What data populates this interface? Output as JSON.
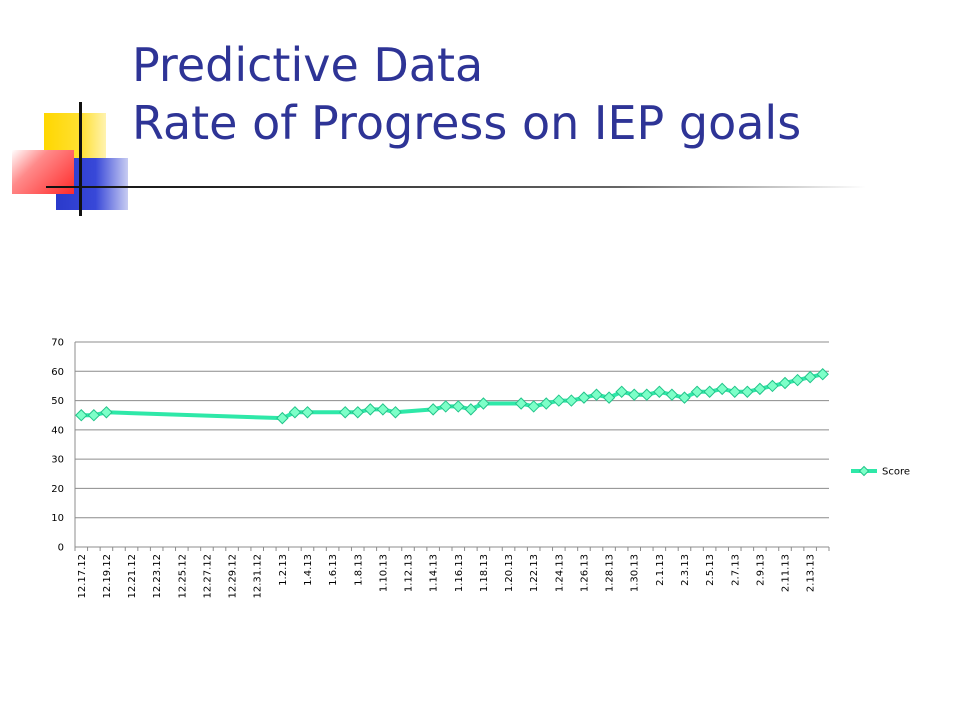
{
  "slide": {
    "title_line1": "Predictive Data",
    "title_line2": "Rate of Progress on IEP goals",
    "colors": {
      "title": "#2e3496",
      "series": "#2ee8a8",
      "marker": "#7dffc8"
    }
  },
  "chart_data": {
    "type": "line",
    "title": "",
    "xlabel": "",
    "ylabel": "",
    "ylim": [
      0,
      70
    ],
    "yticks": [
      0,
      10,
      20,
      30,
      40,
      50,
      60,
      70
    ],
    "grid": true,
    "legend_position": "right",
    "categories": [
      "12.17.12",
      "12.18.12",
      "12.19.12",
      "12.20.12",
      "12.21.12",
      "12.22.12",
      "12.23.12",
      "12.24.12",
      "12.25.12",
      "12.26.12",
      "12.27.12",
      "12.28.12",
      "12.29.12",
      "12.30.12",
      "12.31.12",
      "1.1.13",
      "1.2.13",
      "1.3.13",
      "1.4.13",
      "1.5.13",
      "1.6.13",
      "1.7.13",
      "1.8.13",
      "1.9.13",
      "1.10.13",
      "1.11.13",
      "1.12.13",
      "1.13.13",
      "1.14.13",
      "1.15.13",
      "1.16.13",
      "1.17.13",
      "1.18.13",
      "1.19.13",
      "1.20.13",
      "1.21.13",
      "1.22.13",
      "1.23.13",
      "1.24.13",
      "1.25.13",
      "1.26.13",
      "1.27.13",
      "1.28.13",
      "1.29.13",
      "1.30.13",
      "1.31.13",
      "2.1.13",
      "2.2.13",
      "2.3.13",
      "2.4.13",
      "2.5.13",
      "2.6.13",
      "2.7.13",
      "2.8.13",
      "2.9.13",
      "2.10.13",
      "2.11.13",
      "2.12.13",
      "2.13.13",
      "2.14.13"
    ],
    "tick_labels": [
      "12.17.12",
      "12.19.12",
      "12.21.12",
      "12.23.12",
      "12.25.12",
      "12.27.12",
      "12.29.12",
      "12.31.12",
      "1.2.13",
      "1.4.13",
      "1.6.13",
      "1.8.13",
      "1.10.13",
      "1.12.13",
      "1.14.13",
      "1.16.13",
      "1.18.13",
      "1.20.13",
      "1.22.13",
      "1.24.13",
      "1.26.13",
      "1.28.13",
      "1.30.13",
      "2.1.13",
      "2.3.13",
      "2.5.13",
      "2.7.13",
      "2.9.13",
      "2.11.13",
      "2.13.13"
    ],
    "series": [
      {
        "name": "Score",
        "color": "#2ee8a8",
        "points": [
          [
            "12.17.12",
            45
          ],
          [
            "12.18.12",
            45
          ],
          [
            "12.19.12",
            46
          ],
          [
            "1.2.13",
            44
          ],
          [
            "1.3.13",
            46
          ],
          [
            "1.4.13",
            46
          ],
          [
            "1.7.13",
            46
          ],
          [
            "1.8.13",
            46
          ],
          [
            "1.9.13",
            47
          ],
          [
            "1.10.13",
            47
          ],
          [
            "1.11.13",
            46
          ],
          [
            "1.14.13",
            47
          ],
          [
            "1.15.13",
            48
          ],
          [
            "1.16.13",
            48
          ],
          [
            "1.17.13",
            47
          ],
          [
            "1.18.13",
            49
          ],
          [
            "1.21.13",
            49
          ],
          [
            "1.22.13",
            48
          ],
          [
            "1.23.13",
            49
          ],
          [
            "1.24.13",
            50
          ],
          [
            "1.25.13",
            50
          ],
          [
            "1.26.13",
            51
          ],
          [
            "1.27.13",
            52
          ],
          [
            "1.28.13",
            51
          ],
          [
            "1.29.13",
            53
          ],
          [
            "1.30.13",
            52
          ],
          [
            "1.31.13",
            52
          ],
          [
            "2.1.13",
            53
          ],
          [
            "2.2.13",
            52
          ],
          [
            "2.3.13",
            51
          ],
          [
            "2.4.13",
            53
          ],
          [
            "2.5.13",
            53
          ],
          [
            "2.6.13",
            54
          ],
          [
            "2.7.13",
            53
          ],
          [
            "2.8.13",
            53
          ],
          [
            "2.9.13",
            54
          ],
          [
            "2.10.13",
            55
          ],
          [
            "2.11.13",
            56
          ],
          [
            "2.12.13",
            57
          ],
          [
            "2.13.13",
            58
          ],
          [
            "2.14.13",
            59
          ]
        ]
      }
    ]
  }
}
